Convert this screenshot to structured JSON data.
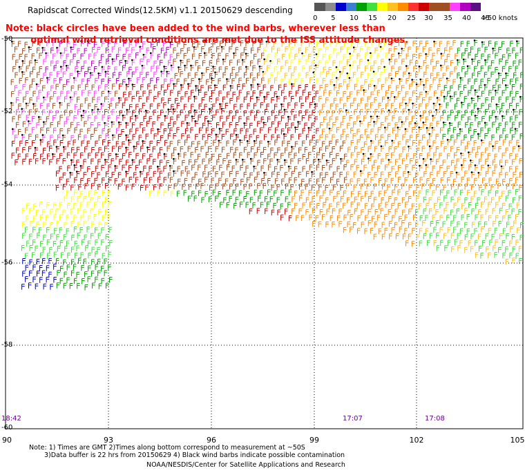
{
  "title": "Rapidscat Corrected Winds(12.5KM) v1.1 20150629 descending",
  "note_line1": "Note: black circles have been added to the wind barbs, wherever less than",
  "note_line2": "optimal wind retrieval conditions are met due to the ISS attitude changes.",
  "legend": {
    "colors": [
      "#555555",
      "#8c8c8c",
      "#0000cc",
      "#3a7fd0",
      "#00a000",
      "#3fe03f",
      "#ffff00",
      "#ffc020",
      "#ff8c00",
      "#ff3030",
      "#cc0000",
      "#a05020",
      "#a05020",
      "#ff40ff",
      "#b000c0",
      "#5a1080"
    ],
    "labels": [
      "0",
      "5",
      "10",
      "15",
      "20",
      "25",
      "30",
      "35",
      "40",
      "45",
      ">50 knots"
    ]
  },
  "x_ticks": [
    "90",
    "93",
    "96",
    "99",
    "102",
    "105"
  ],
  "y_ticks": [
    "-50",
    "-52",
    "-54",
    "-56",
    "-58",
    "-60"
  ],
  "times": [
    "18:42",
    "17:07",
    "17:08"
  ],
  "footer_line1": "Note: 1) Times are GMT 2)Times along bottom correspond to measurement at ~50S",
  "footer_line2": "3)Data buffer is 22 hrs from 20150629 4) Black wind barbs indicate possible contamination",
  "footer_line3": "NOAA/NESDIS/Center for Satellite Applications and Research"
}
